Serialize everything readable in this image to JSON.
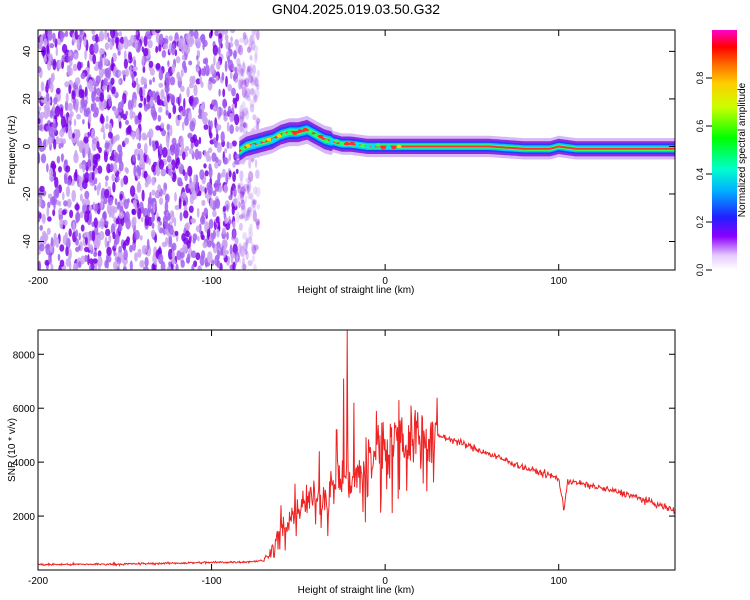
{
  "title": "GN04.2025.019.03.50.G32",
  "colors": {
    "snr_line": "#ee2222",
    "spec_dark": "#7a00e6",
    "spec_light": "#c9a3f0",
    "spec_center": "#ff3030"
  },
  "chart_data": [
    {
      "type": "heatmap",
      "xlabel": "Height of straight line (km)",
      "ylabel": "Frequency (Hz)",
      "xlim": [
        -200,
        167
      ],
      "ylim": [
        -52,
        49
      ],
      "x_ticks": [
        -200,
        -100,
        0,
        100
      ],
      "x_tick_labels": [
        "-200",
        "-100",
        "0",
        "100"
      ],
      "y_ticks": [
        -40,
        -20,
        0,
        20,
        40
      ],
      "y_tick_labels": [
        "-40",
        "-20",
        "0",
        "20",
        "40"
      ],
      "grid": false,
      "noise_region_x": [
        -200,
        -73
      ],
      "ridge": {
        "x": [
          -84,
          -80,
          -75,
          -70,
          -65,
          -60,
          -55,
          -50,
          -45,
          -40,
          -35,
          -30,
          -25,
          -20,
          -10,
          0,
          10,
          20,
          40,
          60,
          80,
          95,
          100,
          110,
          130,
          150,
          167
        ],
        "freq": [
          -2,
          0,
          1,
          2,
          3,
          5,
          6,
          6,
          7,
          5,
          3,
          2,
          1,
          1,
          0,
          0,
          0,
          0,
          0,
          0,
          -1,
          -1,
          0,
          -1,
          -1,
          -1,
          -1
        ]
      },
      "colorbar": {
        "label": "Normalized spectral amplitude",
        "range": [
          0,
          1
        ],
        "ticks": [
          0,
          0.2,
          0.4,
          0.6,
          0.8
        ],
        "tick_labels": [
          "0.0",
          "0.2",
          "0.4",
          "0.6",
          "0.8"
        ]
      }
    },
    {
      "type": "line",
      "xlabel": "Height of straight line (km)",
      "ylabel": "SNR (10 * v/v)",
      "xlim": [
        -200,
        167
      ],
      "ylim": [
        0,
        8900
      ],
      "x_ticks": [
        -200,
        -100,
        0,
        100
      ],
      "x_tick_labels": [
        "-200",
        "-100",
        "0",
        "100"
      ],
      "y_ticks": [
        2000,
        4000,
        6000,
        8000
      ],
      "y_tick_labels": [
        "2000",
        "4000",
        "6000",
        "8000"
      ],
      "grid": false,
      "series": [
        {
          "x": [
            -200,
            -150,
            -100,
            -80,
            -70,
            -65,
            -60,
            -55,
            -50,
            -45,
            -40,
            -35,
            -30,
            -25,
            -22,
            -20,
            -15,
            -10,
            -5,
            0,
            10,
            20,
            25,
            30,
            40,
            60,
            80,
            100,
            103,
            105,
            120,
            140,
            167
          ],
          "y": [
            200,
            220,
            280,
            300,
            350,
            800,
            1500,
            1800,
            2200,
            2600,
            2600,
            2800,
            3000,
            3500,
            3600,
            3300,
            3500,
            4000,
            4500,
            4700,
            4900,
            5000,
            5050,
            5000,
            4800,
            4300,
            3800,
            3400,
            2200,
            3300,
            3100,
            2800,
            2200
          ],
          "spikes": [
            {
              "x": -60,
              "y": 2400
            },
            {
              "x": -52,
              "y": 3200
            },
            {
              "x": -38,
              "y": 4400
            },
            {
              "x": -28,
              "y": 5200
            },
            {
              "x": -24,
              "y": 7100
            },
            {
              "x": -22,
              "y": 8900
            },
            {
              "x": -18,
              "y": 6200
            },
            {
              "x": -5,
              "y": 5900
            },
            {
              "x": 8,
              "y": 6300
            },
            {
              "x": 15,
              "y": 6100
            }
          ]
        }
      ]
    }
  ]
}
